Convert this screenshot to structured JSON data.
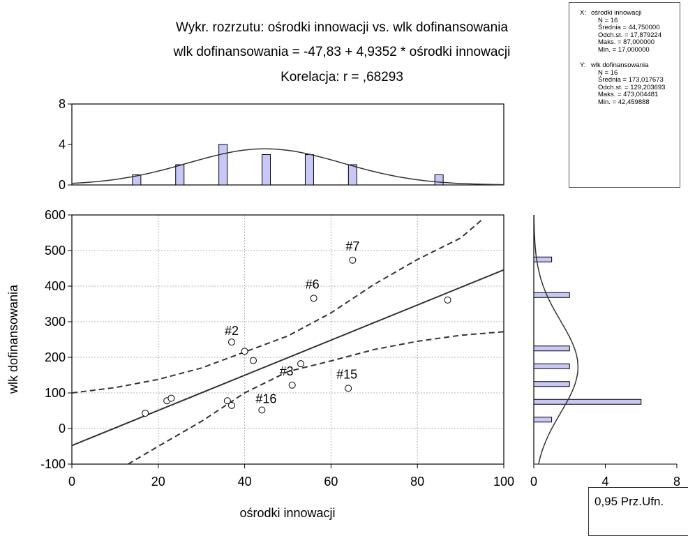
{
  "chart_data": {
    "type": "scatter",
    "title_lines": [
      "Wykr. rozrzutu: ośrodki innowacji vs. wlk dofinansowania",
      "wlk dofinansowania = -47,83 + 4,9352 * ośrodki innowacji",
      "Korelacja: r =   ,68293"
    ],
    "xlabel": "ośrodki innowacji",
    "ylabel": "wlk dofinansowania",
    "xlim": [
      0,
      100
    ],
    "ylim": [
      -100,
      600
    ],
    "x_ticks": [
      "0",
      "20",
      "40",
      "60",
      "80",
      "100"
    ],
    "y_ticks": [
      "-100",
      "0",
      "100",
      "200",
      "300",
      "400",
      "500",
      "600"
    ],
    "grid": true,
    "points": [
      {
        "x": 17,
        "y": 43,
        "label": ""
      },
      {
        "x": 22,
        "y": 78,
        "label": ""
      },
      {
        "x": 23,
        "y": 85,
        "label": ""
      },
      {
        "x": 36,
        "y": 78,
        "label": ""
      },
      {
        "x": 37,
        "y": 65,
        "label": ""
      },
      {
        "x": 37,
        "y": 243,
        "label": "#2"
      },
      {
        "x": 40,
        "y": 217,
        "label": ""
      },
      {
        "x": 42,
        "y": 191,
        "label": ""
      },
      {
        "x": 44,
        "y": 52,
        "label": "#16"
      },
      {
        "x": 51,
        "y": 122,
        "label": "#3"
      },
      {
        "x": 53,
        "y": 182,
        "label": ""
      },
      {
        "x": 56,
        "y": 366,
        "label": "#6"
      },
      {
        "x": 64,
        "y": 113,
        "label": "#15"
      },
      {
        "x": 65,
        "y": 473,
        "label": "#7"
      },
      {
        "x": 87,
        "y": 361,
        "label": ""
      }
    ],
    "regression": {
      "intercept": -47.83,
      "slope": 4.9352
    },
    "confidence_band": {
      "level": "0,95",
      "upper": [
        [
          0,
          100
        ],
        [
          10,
          115
        ],
        [
          20,
          138
        ],
        [
          30,
          170
        ],
        [
          40,
          215
        ],
        [
          50,
          260
        ],
        [
          60,
          325
        ],
        [
          70,
          405
        ],
        [
          80,
          475
        ],
        [
          90,
          535
        ],
        [
          95,
          587
        ]
      ],
      "lower": [
        [
          13,
          -100
        ],
        [
          20,
          -50
        ],
        [
          30,
          20
        ],
        [
          40,
          100
        ],
        [
          50,
          160
        ],
        [
          60,
          190
        ],
        [
          70,
          222
        ],
        [
          80,
          245
        ],
        [
          90,
          262
        ],
        [
          100,
          272
        ]
      ]
    },
    "hist_x": {
      "ylim": [
        0,
        8
      ],
      "y_ticks": [
        "0",
        "4",
        "8"
      ],
      "bins": [
        {
          "x": 15,
          "count": 1
        },
        {
          "x": 25,
          "count": 2
        },
        {
          "x": 35,
          "count": 4
        },
        {
          "x": 45,
          "count": 3
        },
        {
          "x": 55,
          "count": 3
        },
        {
          "x": 65,
          "count": 2
        },
        {
          "x": 75,
          "count": 0
        },
        {
          "x": 85,
          "count": 1
        }
      ],
      "normal": {
        "mean": 44.75,
        "sd": 17.879224,
        "bin_width": 10,
        "n": 16
      }
    },
    "hist_y": {
      "xlim": [
        0,
        8
      ],
      "x_ticks": [
        "0",
        "4",
        "8"
      ],
      "bins": [
        {
          "y": 25,
          "count": 1
        },
        {
          "y": 75,
          "count": 6
        },
        {
          "y": 125,
          "count": 2
        },
        {
          "y": 175,
          "count": 2
        },
        {
          "y": 225,
          "count": 2
        },
        {
          "y": 375,
          "count": 2
        },
        {
          "y": 475,
          "count": 1
        }
      ],
      "normal": {
        "mean": 173.017673,
        "sd": 129.203693,
        "bin_width": 50,
        "n": 16
      }
    },
    "stats": {
      "x": {
        "tag": "X:",
        "name": "ośrodki innowacji",
        "lines": [
          "N = 16",
          "Średnia = 44,750000",
          "Odch.st. = 17,879224",
          "Maks. = 87,000000",
          "Min. = 17,000000"
        ]
      },
      "y": {
        "tag": "Y:",
        "name": "wlk dofinansowania",
        "lines": [
          "N = 16",
          "Średnia = 173,017673",
          "Odch.st. = 129,203693",
          "Maks. = 473,004481",
          "Min. = 42,459888"
        ]
      }
    },
    "legend_text": "0,95 Prz.Ufn.",
    "colors": {
      "bar_fill": "#c8c8f8",
      "line": "#333333",
      "grid": "#b0b0b0"
    }
  }
}
